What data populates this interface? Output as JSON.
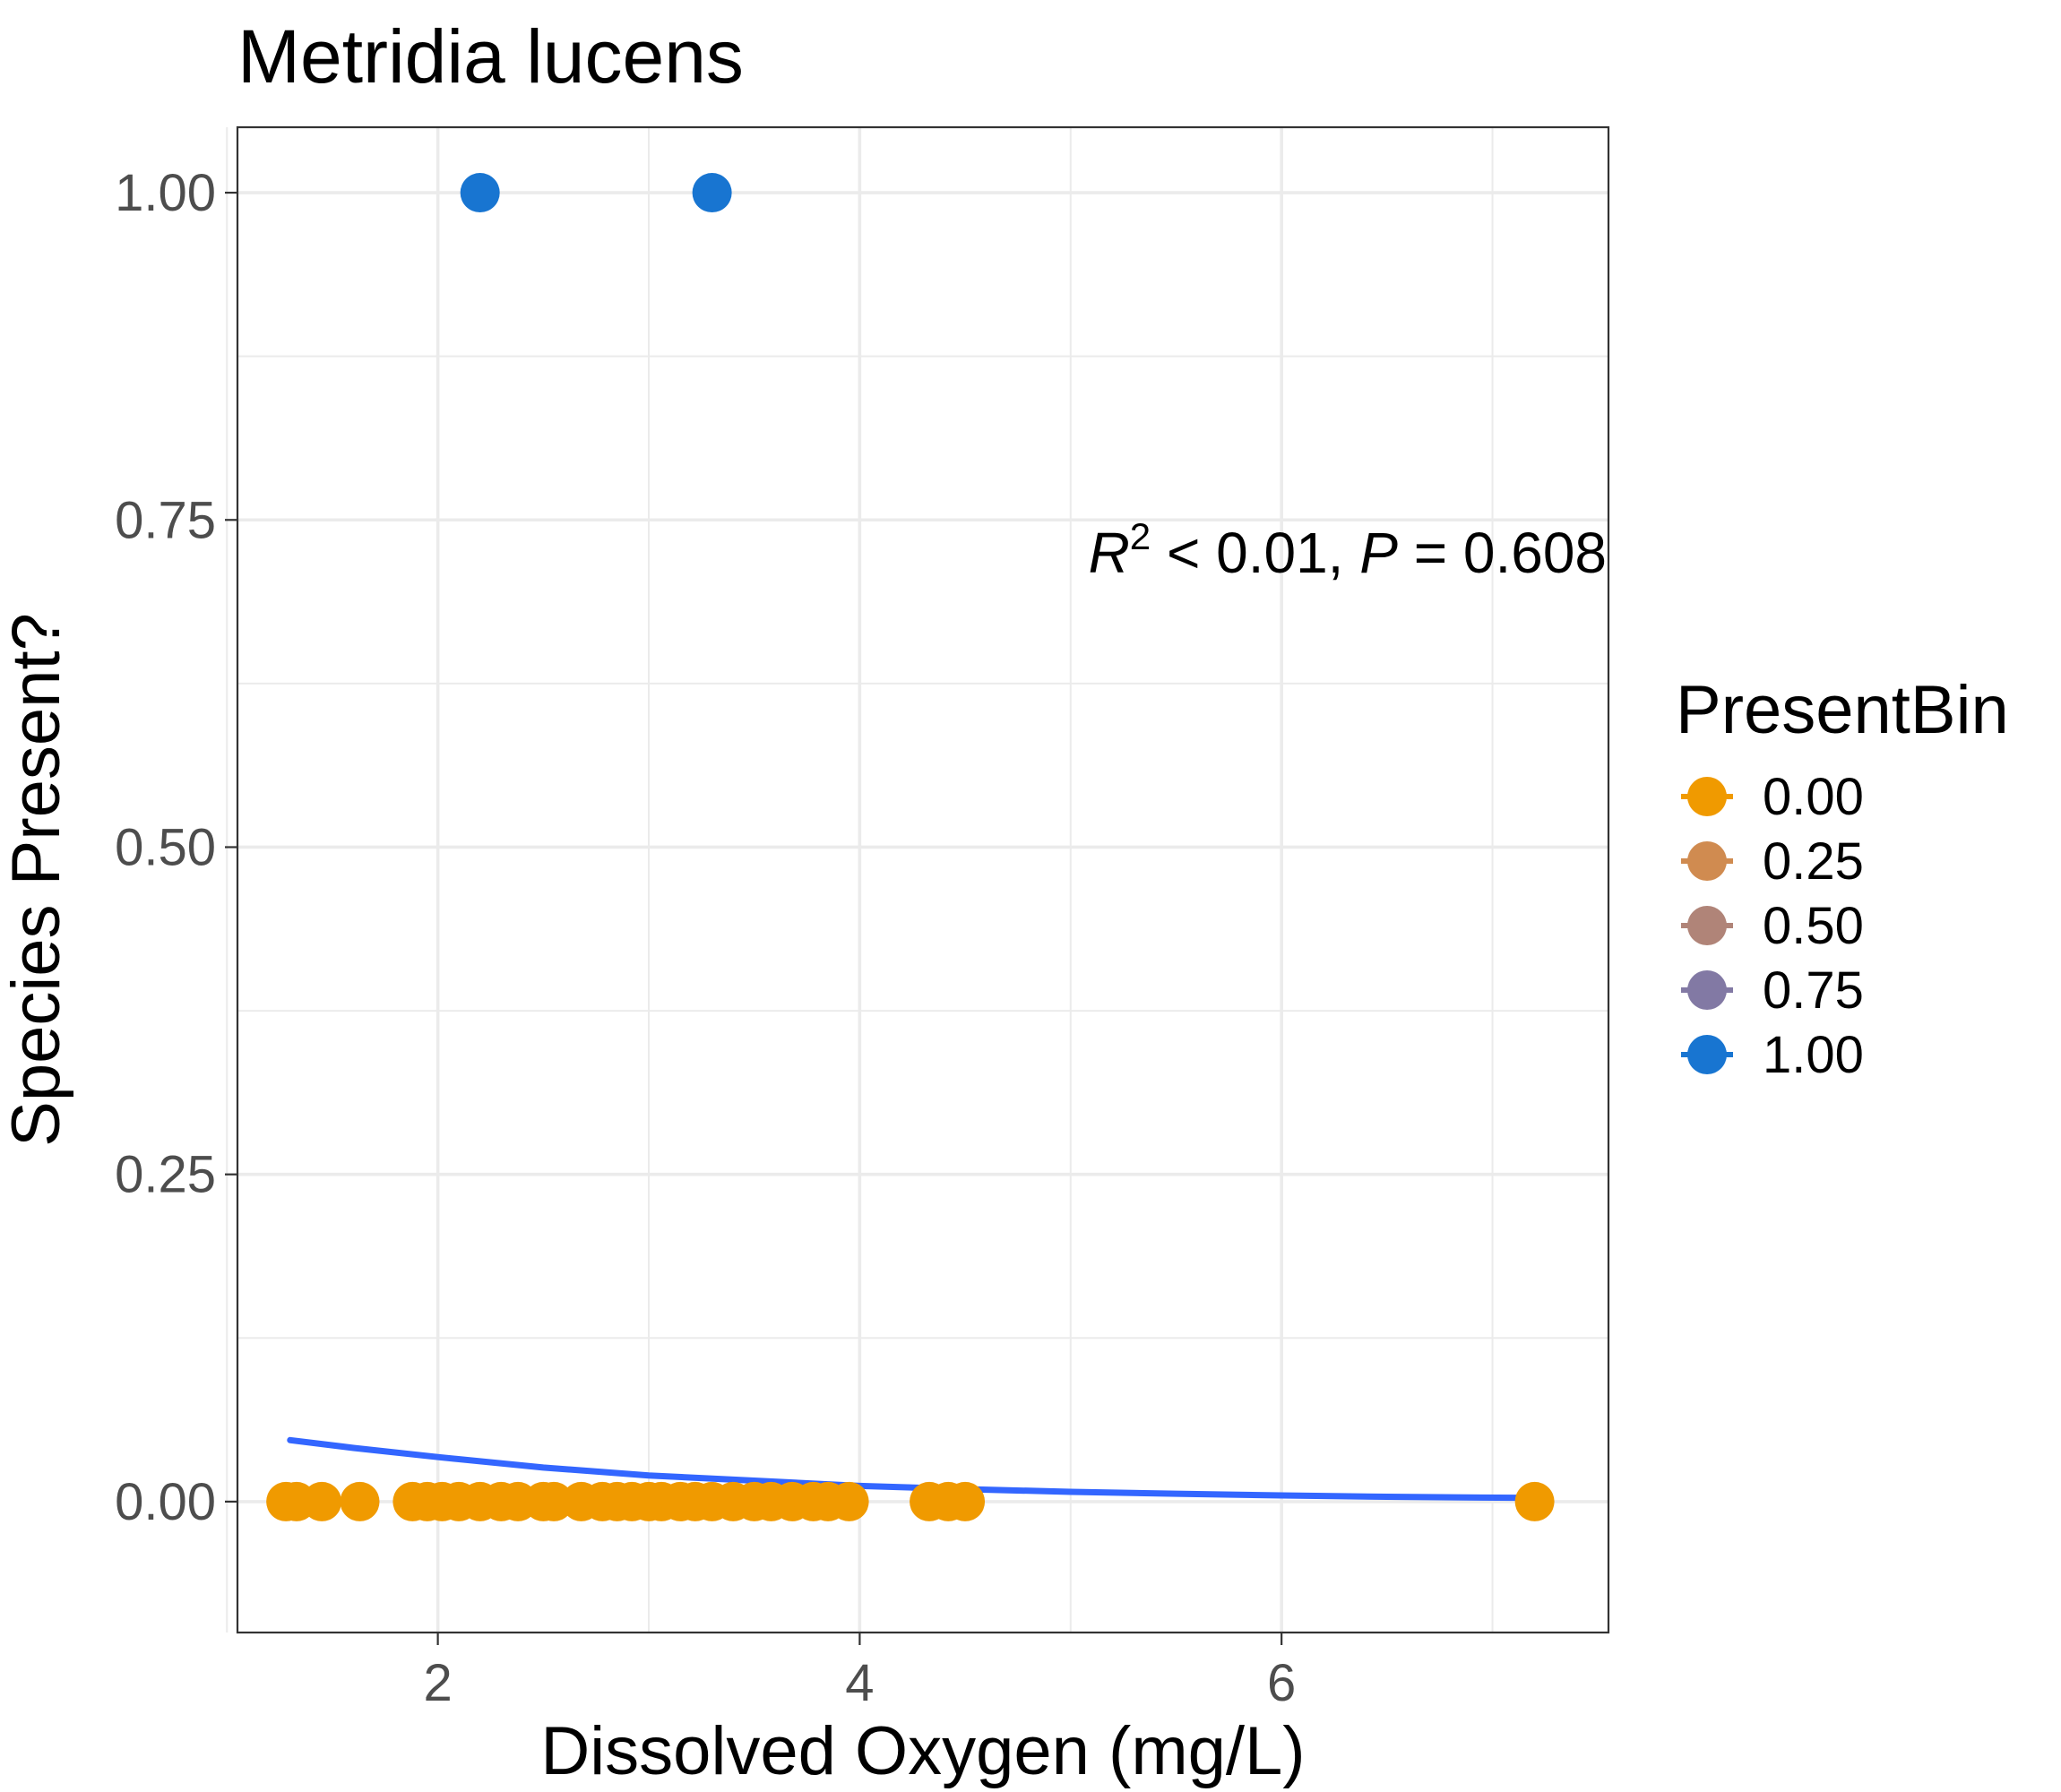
{
  "chart_data": {
    "type": "scatter",
    "title": "Metridia lucens",
    "xlabel": "Dissolved Oxygen (mg/L)",
    "ylabel": "Species Present?",
    "xlim": [
      1.05,
      7.55
    ],
    "ylim": [
      -0.1,
      1.05
    ],
    "x_ticks": [
      2,
      4,
      6
    ],
    "x_tick_labels": [
      "2",
      "4",
      "6"
    ],
    "x_minor_ticks": [
      1,
      3,
      5,
      7
    ],
    "y_ticks": [
      0,
      0.25,
      0.5,
      0.75,
      1.0
    ],
    "y_tick_labels": [
      "0.00",
      "0.25",
      "0.50",
      "0.75",
      "1.00"
    ],
    "y_minor_ticks": [
      0.125,
      0.375,
      0.625,
      0.875
    ],
    "grid": true,
    "legend": {
      "title": "PresentBin",
      "position": "right",
      "entries": [
        {
          "label": "0.00",
          "color": "#f09a00"
        },
        {
          "label": "0.25",
          "color": "#d08b50"
        },
        {
          "label": "0.50",
          "color": "#b08478"
        },
        {
          "label": "0.75",
          "color": "#8279a4"
        },
        {
          "label": "1.00",
          "color": "#1875d1"
        }
      ]
    },
    "points": [
      {
        "x": 1.28,
        "y": 0,
        "bin": 0
      },
      {
        "x": 1.33,
        "y": 0,
        "bin": 0
      },
      {
        "x": 1.45,
        "y": 0,
        "bin": 0
      },
      {
        "x": 1.63,
        "y": 0,
        "bin": 0
      },
      {
        "x": 1.88,
        "y": 0,
        "bin": 0
      },
      {
        "x": 1.95,
        "y": 0,
        "bin": 0
      },
      {
        "x": 2.02,
        "y": 0,
        "bin": 0
      },
      {
        "x": 2.1,
        "y": 0,
        "bin": 0
      },
      {
        "x": 2.2,
        "y": 0,
        "bin": 0
      },
      {
        "x": 2.3,
        "y": 0,
        "bin": 0
      },
      {
        "x": 2.38,
        "y": 0,
        "bin": 0
      },
      {
        "x": 2.5,
        "y": 0,
        "bin": 0
      },
      {
        "x": 2.55,
        "y": 0,
        "bin": 0
      },
      {
        "x": 2.68,
        "y": 0,
        "bin": 0
      },
      {
        "x": 2.78,
        "y": 0,
        "bin": 0
      },
      {
        "x": 2.85,
        "y": 0,
        "bin": 0
      },
      {
        "x": 2.92,
        "y": 0,
        "bin": 0
      },
      {
        "x": 3.0,
        "y": 0,
        "bin": 0
      },
      {
        "x": 3.06,
        "y": 0,
        "bin": 0
      },
      {
        "x": 3.15,
        "y": 0,
        "bin": 0
      },
      {
        "x": 3.22,
        "y": 0,
        "bin": 0
      },
      {
        "x": 3.3,
        "y": 0,
        "bin": 0
      },
      {
        "x": 3.4,
        "y": 0,
        "bin": 0
      },
      {
        "x": 3.5,
        "y": 0,
        "bin": 0
      },
      {
        "x": 3.58,
        "y": 0,
        "bin": 0
      },
      {
        "x": 3.68,
        "y": 0,
        "bin": 0
      },
      {
        "x": 3.78,
        "y": 0,
        "bin": 0
      },
      {
        "x": 3.85,
        "y": 0,
        "bin": 0
      },
      {
        "x": 3.95,
        "y": 0,
        "bin": 0
      },
      {
        "x": 4.33,
        "y": 0,
        "bin": 0
      },
      {
        "x": 4.42,
        "y": 0,
        "bin": 0
      },
      {
        "x": 4.5,
        "y": 0,
        "bin": 0
      },
      {
        "x": 7.2,
        "y": 0,
        "bin": 0
      },
      {
        "x": 2.2,
        "y": 1,
        "bin": 1
      },
      {
        "x": 3.3,
        "y": 1,
        "bin": 1
      }
    ],
    "fit_line": {
      "color": "#3366ff",
      "x": [
        1.3,
        1.6,
        2.0,
        2.5,
        3.0,
        3.5,
        4.0,
        4.5,
        5.0,
        5.5,
        6.0,
        6.5,
        7.2
      ],
      "y": [
        0.047,
        0.041,
        0.034,
        0.026,
        0.02,
        0.016,
        0.012,
        0.0095,
        0.0075,
        0.006,
        0.0047,
        0.0037,
        0.0028
      ]
    },
    "annotation": {
      "r_symbol": "R",
      "r_superscript": "2",
      "r_relation": " < 0.01, ",
      "p_symbol": "P",
      "p_relation": " = 0.608",
      "anchor_x": 7.55,
      "anchor_y": 0.725
    }
  }
}
